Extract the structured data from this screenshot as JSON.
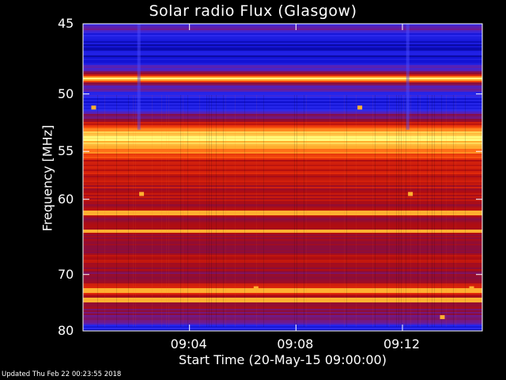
{
  "footer": "Updated Thu Feb 22 00:23:55 2018",
  "chart_data": {
    "type": "heatmap",
    "title": "Solar radio Flux (Glasgow)",
    "xlabel": "Start Time (20-May-15 09:00:00)",
    "ylabel": "Frequency [MHz]",
    "y_ticks": [
      45,
      50,
      55,
      60,
      70,
      80
    ],
    "x_tick_labels": [
      "09:04",
      "09:08",
      "09:12"
    ],
    "x_tick_minutes": [
      4,
      8,
      12
    ],
    "xlim_minutes": [
      0,
      15
    ],
    "ylim": [
      45,
      80
    ],
    "y_scale": "reciprocal",
    "colormap": [
      "#000060",
      "#1010d0",
      "#2a2af0",
      "#6a1c9c",
      "#8a0d3c",
      "#b00d10",
      "#e0280a",
      "#ff6010",
      "#ffb030",
      "#ffff80",
      "#ffffff"
    ],
    "intensity_profile": [
      {
        "f": 45.0,
        "v": 0.08
      },
      {
        "f": 45.1,
        "v": 0.3
      },
      {
        "f": 46.0,
        "v": 0.1
      },
      {
        "f": 47.5,
        "v": 0.12
      },
      {
        "f": 48.3,
        "v": 0.3
      },
      {
        "f": 48.8,
        "v": 0.92
      },
      {
        "f": 49.2,
        "v": 0.35
      },
      {
        "f": 50.0,
        "v": 0.18
      },
      {
        "f": 51.0,
        "v": 0.14
      },
      {
        "f": 52.0,
        "v": 0.4
      },
      {
        "f": 53.0,
        "v": 0.78
      },
      {
        "f": 54.0,
        "v": 0.88
      },
      {
        "f": 55.0,
        "v": 0.72
      },
      {
        "f": 56.0,
        "v": 0.55
      },
      {
        "f": 58.0,
        "v": 0.52
      },
      {
        "f": 60.0,
        "v": 0.5
      },
      {
        "f": 62.0,
        "v": 0.46
      },
      {
        "f": 64.0,
        "v": 0.48
      },
      {
        "f": 66.0,
        "v": 0.42
      },
      {
        "f": 68.0,
        "v": 0.5
      },
      {
        "f": 70.0,
        "v": 0.42
      },
      {
        "f": 72.0,
        "v": 0.56
      },
      {
        "f": 74.0,
        "v": 0.52
      },
      {
        "f": 76.0,
        "v": 0.38
      },
      {
        "f": 78.0,
        "v": 0.32
      },
      {
        "f": 79.0,
        "v": 0.2
      },
      {
        "f": 80.0,
        "v": 0.12
      }
    ],
    "bright_bands_mhz": [
      48.8,
      53.2,
      54.0,
      61.5,
      63.8,
      72.4,
      74.0
    ],
    "hot_pixels": [
      {
        "t": 2.2,
        "f": 59.4
      },
      {
        "t": 12.3,
        "f": 59.4
      },
      {
        "t": 0.4,
        "f": 51.1
      },
      {
        "t": 10.4,
        "f": 51.1
      },
      {
        "t": 13.5,
        "f": 77.3
      },
      {
        "t": 6.5,
        "f": 72.2
      },
      {
        "t": 14.6,
        "f": 72.2
      }
    ],
    "bright_columns_minutes": [
      2.1,
      12.2
    ]
  }
}
